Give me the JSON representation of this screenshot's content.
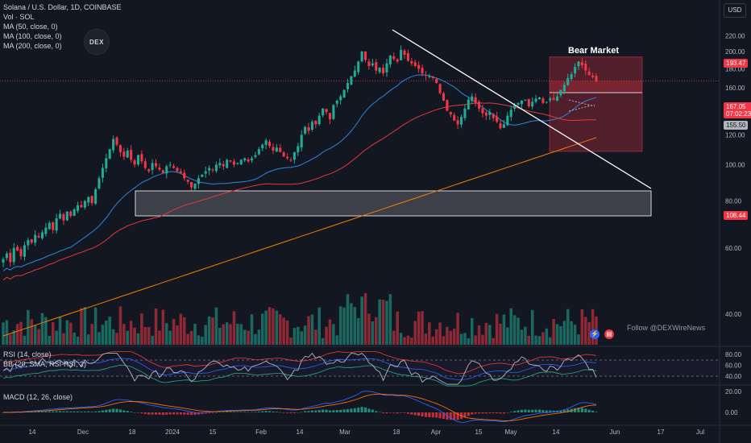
{
  "header": {
    "symbol": "Solana / U.S. Dollar, 1D, COINBASE",
    "volume_legend": "Vol · SOL",
    "ma50_legend": "MA (50, close, 0)",
    "ma100_legend": "MA (100, close, 0)",
    "ma200_legend": "MA (200, close, 0)",
    "currency": "USD",
    "logo_text": "DEX"
  },
  "annotations": {
    "bear_market": "Bear Market",
    "follow": "Follow @DEXWireNews"
  },
  "price_tags": {
    "tag_19347": "193.47",
    "tag_16705": "167.05",
    "countdown": "07:02:23",
    "tag_15550": "155.50",
    "tag_10844": "108.44"
  },
  "indicators": {
    "rsi_legend": "RSI (14, close)",
    "bb_legend": "BB (20, SMA, RSI-RSI, 2)",
    "macd_legend": "MACD (12, 26, close)"
  },
  "colors": {
    "background": "#131722",
    "up": "#22ab94",
    "down": "#f23645",
    "ma50": "#2e86de",
    "ma100": "#e53935",
    "ma200": "#f57c00",
    "text": "#d1d4dc",
    "bear_zone": "#f23645"
  },
  "chart_data": {
    "type": "candlestick",
    "price_axis": {
      "ticks": [
        "220.00",
        "200.00",
        "180.00",
        "160.00",
        "140.00",
        "120.00",
        "100.00",
        "80.00",
        "60.00",
        "40.00"
      ],
      "scale": "log"
    },
    "x_labels": [
      "14",
      "Dec",
      "18",
      "2024",
      "15",
      "Feb",
      "14",
      "Mar",
      "18",
      "Apr",
      "15",
      "May",
      "14",
      "Jun",
      "17",
      "Jul"
    ],
    "rsi_axis": [
      "80.00",
      "60.00",
      "40.00"
    ],
    "macd_axis": [
      "20.00",
      "0.00"
    ],
    "key_levels": {
      "current_price": 167.05,
      "bear_zone_top": 193.47,
      "bear_zone_level": 155.5,
      "support_zone_low": 108.44
    },
    "approx_closes": [
      56,
      58,
      55,
      60,
      59,
      57,
      61,
      63,
      62,
      65,
      64,
      66,
      68,
      70,
      67,
      72,
      74,
      71,
      75,
      73,
      76,
      78,
      77,
      80,
      82,
      79,
      86,
      92,
      98,
      104,
      110,
      117,
      113,
      108,
      105,
      109,
      103,
      100,
      106,
      102,
      98,
      96,
      101,
      99,
      97,
      95,
      99,
      100,
      98,
      96,
      95,
      92,
      90,
      87,
      89,
      92,
      94,
      96,
      98,
      97,
      100,
      101,
      99,
      103,
      102,
      100,
      101,
      103,
      104,
      102,
      104,
      106,
      110,
      113,
      116,
      112,
      109,
      111,
      108,
      105,
      104,
      103,
      108,
      112,
      120,
      126,
      123,
      130,
      128,
      135,
      141,
      138,
      132,
      144,
      148,
      152,
      158,
      165,
      172,
      178,
      188,
      200,
      190,
      183,
      186,
      178,
      181,
      175,
      186,
      195,
      191,
      188,
      202,
      196,
      189,
      186,
      183,
      180,
      175,
      173,
      172,
      170,
      165,
      155,
      148,
      139,
      136,
      131,
      128,
      134,
      141,
      149,
      152,
      146,
      141,
      137,
      135,
      138,
      133,
      130,
      125,
      128,
      135,
      140,
      144,
      146,
      148,
      149,
      143,
      147,
      150,
      151,
      146,
      147,
      150,
      149,
      152,
      158,
      163,
      170,
      174,
      182,
      188,
      184,
      178,
      173,
      171,
      167
    ]
  }
}
